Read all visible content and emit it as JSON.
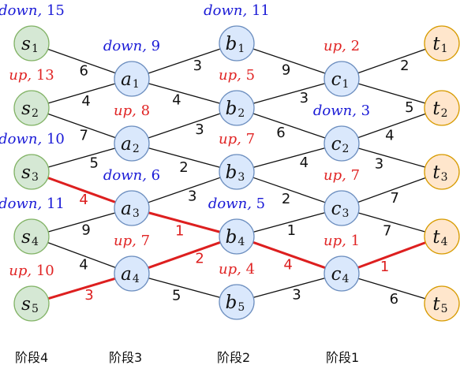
{
  "nodes": [
    {
      "id": "s1",
      "letter": "s",
      "index": "1",
      "color": "green"
    },
    {
      "id": "s2",
      "letter": "s",
      "index": "2",
      "color": "green"
    },
    {
      "id": "s3",
      "letter": "s",
      "index": "3",
      "color": "green"
    },
    {
      "id": "s4",
      "letter": "s",
      "index": "4",
      "color": "green"
    },
    {
      "id": "s5",
      "letter": "s",
      "index": "5",
      "color": "green"
    },
    {
      "id": "a1",
      "letter": "a",
      "index": "1",
      "color": "blue"
    },
    {
      "id": "a2",
      "letter": "a",
      "index": "2",
      "color": "blue"
    },
    {
      "id": "a3",
      "letter": "a",
      "index": "3",
      "color": "blue"
    },
    {
      "id": "a4",
      "letter": "a",
      "index": "4",
      "color": "blue"
    },
    {
      "id": "b1",
      "letter": "b",
      "index": "1",
      "color": "blue"
    },
    {
      "id": "b2",
      "letter": "b",
      "index": "2",
      "color": "blue"
    },
    {
      "id": "b3",
      "letter": "b",
      "index": "3",
      "color": "blue"
    },
    {
      "id": "b4",
      "letter": "b",
      "index": "4",
      "color": "blue"
    },
    {
      "id": "b5",
      "letter": "b",
      "index": "5",
      "color": "blue"
    },
    {
      "id": "c1",
      "letter": "c",
      "index": "1",
      "color": "blue"
    },
    {
      "id": "c2",
      "letter": "c",
      "index": "2",
      "color": "blue"
    },
    {
      "id": "c3",
      "letter": "c",
      "index": "3",
      "color": "blue"
    },
    {
      "id": "c4",
      "letter": "c",
      "index": "4",
      "color": "blue"
    },
    {
      "id": "t1",
      "letter": "t",
      "index": "1",
      "color": "orange"
    },
    {
      "id": "t2",
      "letter": "t",
      "index": "2",
      "color": "orange"
    },
    {
      "id": "t3",
      "letter": "t",
      "index": "3",
      "color": "orange"
    },
    {
      "id": "t4",
      "letter": "t",
      "index": "4",
      "color": "orange"
    },
    {
      "id": "t5",
      "letter": "t",
      "index": "5",
      "color": "orange"
    }
  ],
  "edges": [
    {
      "from": "s1",
      "to": "a1",
      "weight": "6",
      "highlight": false
    },
    {
      "from": "s2",
      "to": "a1",
      "weight": "4",
      "highlight": false
    },
    {
      "from": "s2",
      "to": "a2",
      "weight": "7",
      "highlight": false
    },
    {
      "from": "s3",
      "to": "a2",
      "weight": "5",
      "highlight": false
    },
    {
      "from": "s3",
      "to": "a3",
      "weight": "4",
      "highlight": true
    },
    {
      "from": "s4",
      "to": "a3",
      "weight": "9",
      "highlight": false
    },
    {
      "from": "s4",
      "to": "a4",
      "weight": "4",
      "highlight": false
    },
    {
      "from": "s5",
      "to": "a4",
      "weight": "3",
      "highlight": true
    },
    {
      "from": "a1",
      "to": "b1",
      "weight": "3",
      "highlight": false
    },
    {
      "from": "a1",
      "to": "b2",
      "weight": "4",
      "highlight": false
    },
    {
      "from": "a2",
      "to": "b2",
      "weight": "3",
      "highlight": false
    },
    {
      "from": "a2",
      "to": "b3",
      "weight": "2",
      "highlight": false
    },
    {
      "from": "a3",
      "to": "b3",
      "weight": "3",
      "highlight": false
    },
    {
      "from": "a3",
      "to": "b4",
      "weight": "1",
      "highlight": true
    },
    {
      "from": "a4",
      "to": "b4",
      "weight": "2",
      "highlight": true
    },
    {
      "from": "a4",
      "to": "b5",
      "weight": "5",
      "highlight": false
    },
    {
      "from": "b1",
      "to": "c1",
      "weight": "9",
      "highlight": false
    },
    {
      "from": "b2",
      "to": "c1",
      "weight": "3",
      "highlight": false
    },
    {
      "from": "b2",
      "to": "c2",
      "weight": "6",
      "highlight": false
    },
    {
      "from": "b3",
      "to": "c2",
      "weight": "4",
      "highlight": false
    },
    {
      "from": "b3",
      "to": "c3",
      "weight": "2",
      "highlight": false
    },
    {
      "from": "b4",
      "to": "c3",
      "weight": "1",
      "highlight": false
    },
    {
      "from": "b4",
      "to": "c4",
      "weight": "4",
      "highlight": true
    },
    {
      "from": "b5",
      "to": "c4",
      "weight": "3",
      "highlight": false
    },
    {
      "from": "c1",
      "to": "t1",
      "weight": "2",
      "highlight": false
    },
    {
      "from": "c1",
      "to": "t2",
      "weight": "5",
      "highlight": false
    },
    {
      "from": "c2",
      "to": "t2",
      "weight": "4",
      "highlight": false
    },
    {
      "from": "c2",
      "to": "t3",
      "weight": "3",
      "highlight": false
    },
    {
      "from": "c3",
      "to": "t3",
      "weight": "7",
      "highlight": false
    },
    {
      "from": "c3",
      "to": "t4",
      "weight": "7",
      "highlight": false
    },
    {
      "from": "c4",
      "to": "t4",
      "weight": "1",
      "highlight": true
    },
    {
      "from": "c4",
      "to": "t5",
      "weight": "6",
      "highlight": false
    }
  ],
  "annotations": [
    {
      "node": "s1",
      "dir": "down",
      "value": "15"
    },
    {
      "node": "s2",
      "dir": "up",
      "value": "13"
    },
    {
      "node": "s3",
      "dir": "down",
      "value": "10"
    },
    {
      "node": "s4",
      "dir": "down",
      "value": "11"
    },
    {
      "node": "s5",
      "dir": "up",
      "value": "10"
    },
    {
      "node": "a1",
      "dir": "down",
      "value": "9"
    },
    {
      "node": "a2",
      "dir": "up",
      "value": "8"
    },
    {
      "node": "a3",
      "dir": "down",
      "value": "6"
    },
    {
      "node": "a4",
      "dir": "up",
      "value": "7"
    },
    {
      "node": "b1",
      "dir": "down",
      "value": "11"
    },
    {
      "node": "b2",
      "dir": "up",
      "value": "5"
    },
    {
      "node": "b3",
      "dir": "up",
      "value": "7"
    },
    {
      "node": "b4",
      "dir": "down",
      "value": "5"
    },
    {
      "node": "b5",
      "dir": "up",
      "value": "4"
    },
    {
      "node": "c1",
      "dir": "up",
      "value": "2"
    },
    {
      "node": "c2",
      "dir": "down",
      "value": "3"
    },
    {
      "node": "c3",
      "dir": "up",
      "value": "7"
    },
    {
      "node": "c4",
      "dir": "up",
      "value": "1"
    }
  ],
  "stages": [
    "阶段4",
    "阶段3",
    "阶段2",
    "阶段1"
  ],
  "colors": {
    "up": "#e02424",
    "down": "#1a1ad6",
    "highlight": "#dd1f1f",
    "edge": "#111111",
    "green_fill": "#d5e8d4",
    "green_stroke": "#82b366",
    "blue_fill": "#dae8fc",
    "blue_stroke": "#6c8ebf",
    "orange_fill": "#ffe6cc",
    "orange_stroke": "#d79b00"
  }
}
